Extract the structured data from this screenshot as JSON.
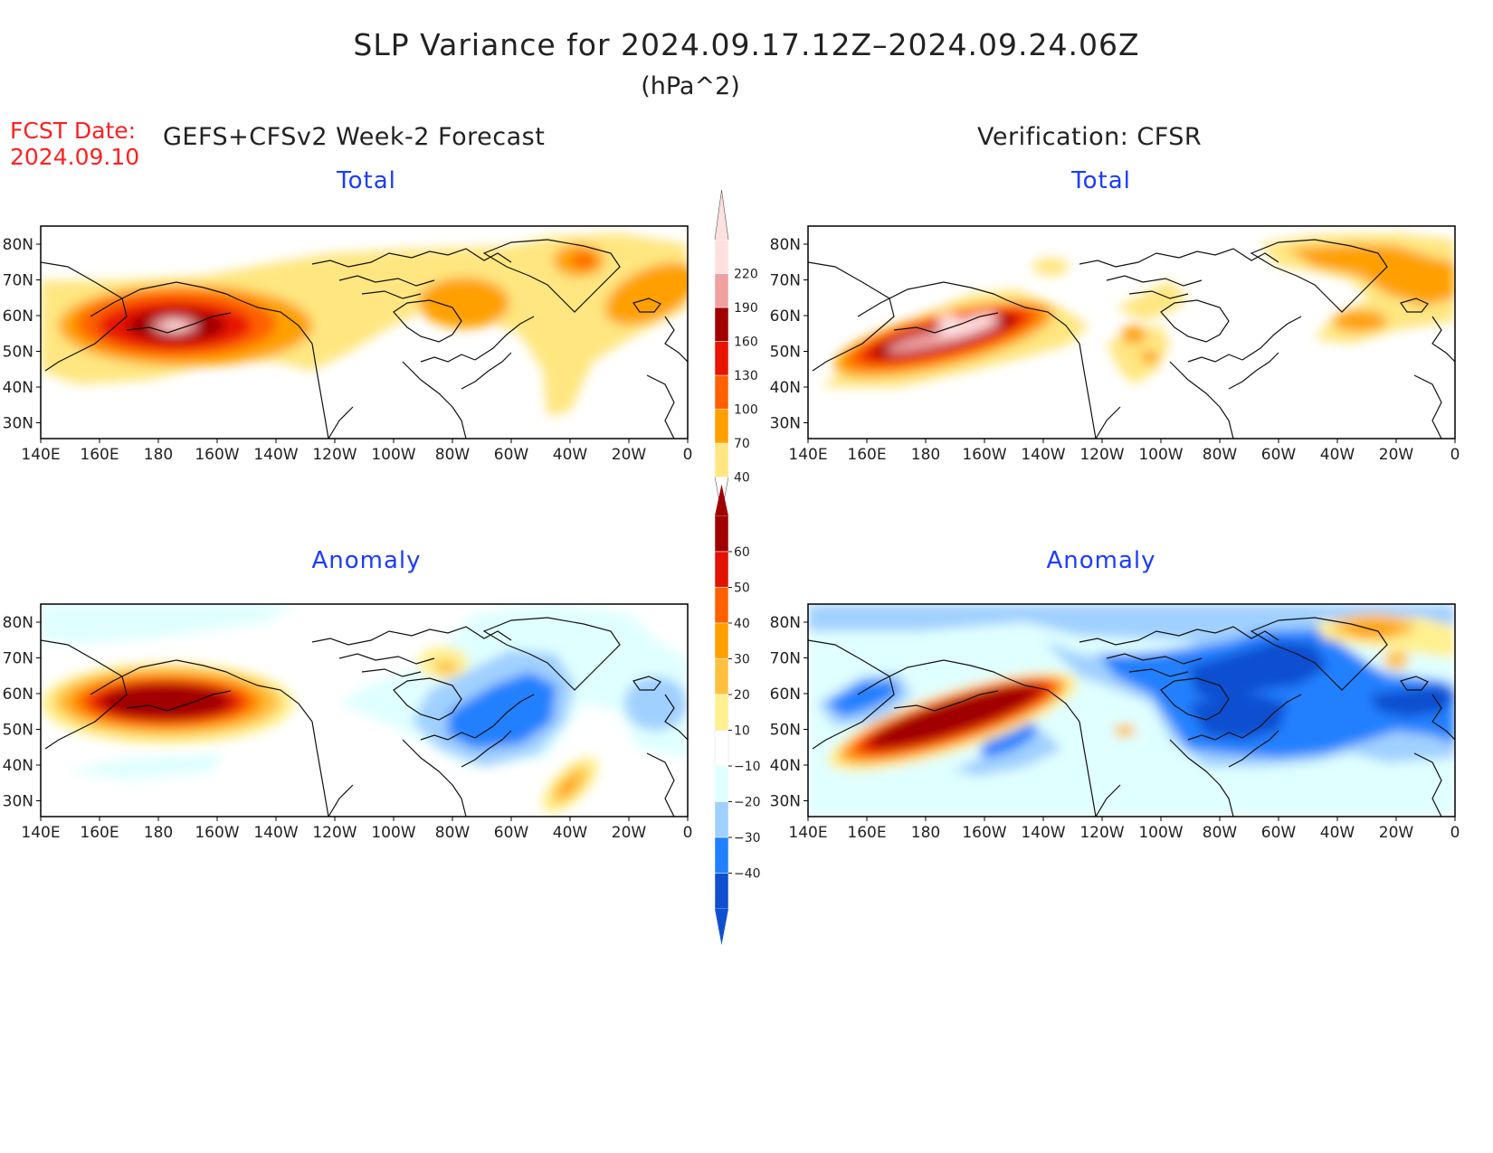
{
  "title": "SLP Variance for 2024.09.17.12Z–2024.09.24.06Z",
  "units": "(hPa^2)",
  "fcst_label": "FCST Date:",
  "fcst_date": "2024.09.10",
  "left_header": "GEFS+CFSv2 Week-2 Forecast",
  "right_header": "Verification: CFSR",
  "panels": {
    "top_left": "Total",
    "top_right": "Total",
    "bottom_left": "Anomaly",
    "bottom_right": "Anomaly"
  },
  "lon_labels": [
    "140E",
    "160E",
    "180",
    "160W",
    "140W",
    "120W",
    "100W",
    "80W",
    "60W",
    "40W",
    "20W",
    "0"
  ],
  "lat_labels": [
    "80N",
    "70N",
    "60N",
    "50N",
    "40N",
    "30N"
  ],
  "colorbar_total": {
    "levels": [
      "40",
      "70",
      "100",
      "130",
      "160",
      "190",
      "220"
    ],
    "colors": [
      "#ffe680",
      "#ffa000",
      "#ff6000",
      "#e81400",
      "#a00000",
      "#f0a0a0",
      "#ffe0e0"
    ]
  },
  "colorbar_anomaly": {
    "levels": [
      "60",
      "50",
      "40",
      "30",
      "20",
      "10",
      "−10",
      "−20",
      "−30",
      "−40"
    ],
    "colors": [
      "#a00000",
      "#e01400",
      "#ff6000",
      "#ffa000",
      "#ffc040",
      "#fff090",
      "#ffffff",
      "#e0ffff",
      "#a0d0ff",
      "#2080ff",
      "#1050d0"
    ]
  }
}
